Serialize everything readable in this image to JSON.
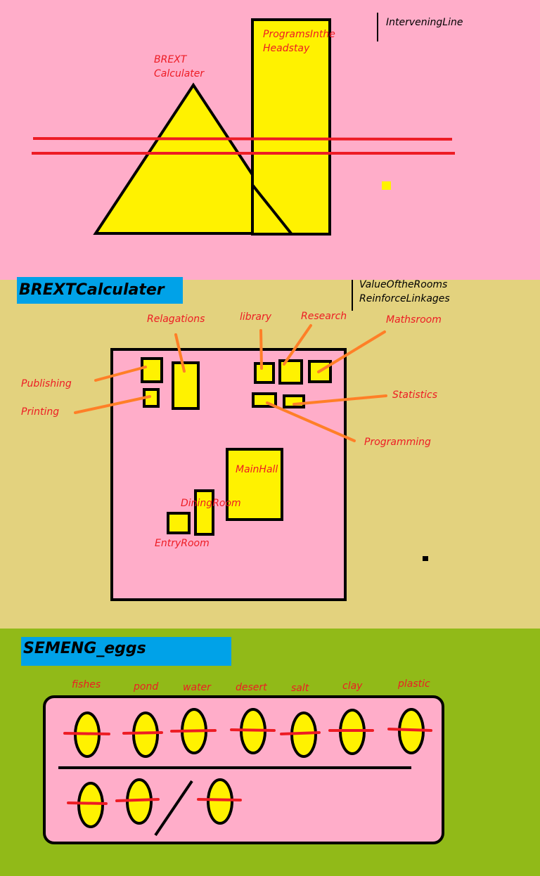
{
  "colors": {
    "pink": "#ffadc9",
    "tan": "#e3d27e",
    "olive": "#91ba18",
    "yellow": "#fff200",
    "red": "#ed1c24",
    "orange": "#ff7f27",
    "blue": "#00a2e8",
    "label_red": "#ed1c24",
    "black": "#000000"
  },
  "top": {
    "brext_label": "BREXT\nCalculater",
    "programs_label": "ProgramsInthe\nHeadstay",
    "intervening_label": "InterveningLine"
  },
  "middle": {
    "title": "BREXTCalculater",
    "note": "ValueOftheRooms\nReinforceLinkages",
    "rooms": {
      "relagations": "Relagations",
      "library": "library",
      "research": "Research",
      "mathsroom": "Mathsroom",
      "publishing": "Publishing",
      "printing": "Printing",
      "statistics": "Statistics",
      "programming": "Programming",
      "mainhall": "MainHall",
      "diningroom": "DiningRoom",
      "entryroom": "EntryRoom"
    }
  },
  "bottom": {
    "title": "SEMENG_eggs",
    "egg_labels": [
      "fishes",
      "pond",
      "water",
      "desert",
      "salt",
      "clay",
      "plastic"
    ]
  }
}
